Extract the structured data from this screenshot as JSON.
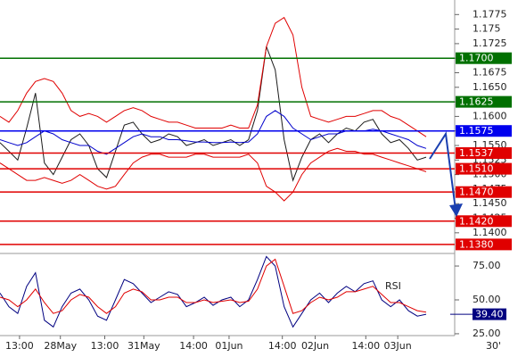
{
  "chart_data": [
    {
      "type": "line",
      "xlim": [
        0,
        97
      ],
      "ylim": [
        1.1366,
        1.18
      ],
      "yticks": [
        1.1775,
        1.175,
        1.1725,
        {
          "value": 1.17,
          "label": "1.1700"
        },
        1.1675,
        {
          "value": 1.165,
          "label": "1.1650"
        },
        1.1625,
        {
          "value": 1.16,
          "label": "1.1600"
        },
        1.1575,
        {
          "value": 1.155,
          "label": "1.1550"
        },
        1.1525,
        {
          "value": 1.15,
          "label": "1.1500"
        },
        1.1475,
        {
          "value": 1.145,
          "label": "1.1450"
        },
        1.1425,
        {
          "value": 1.14,
          "label": "1.1400"
        }
      ],
      "x": [
        0,
        2,
        4,
        6,
        8,
        10,
        12,
        14,
        16,
        18,
        20,
        22,
        24,
        26,
        28,
        30,
        32,
        34,
        36,
        38,
        40,
        42,
        44,
        46,
        48,
        50,
        52,
        54,
        56,
        58,
        60,
        62,
        64,
        66,
        68,
        70,
        72,
        74,
        76,
        78,
        80,
        82,
        84,
        86,
        88,
        90,
        92,
        94,
        96
      ],
      "series": [
        {
          "color": "#1a1a1a",
          "values": [
            1.1555,
            1.154,
            1.1525,
            1.158,
            1.164,
            1.152,
            1.15,
            1.153,
            1.156,
            1.157,
            1.155,
            1.151,
            1.1495,
            1.154,
            1.1585,
            1.159,
            1.157,
            1.1555,
            1.156,
            1.157,
            1.1565,
            1.155,
            1.1555,
            1.156,
            1.155,
            1.1555,
            1.156,
            1.155,
            1.156,
            1.161,
            1.172,
            1.168,
            1.156,
            1.149,
            1.153,
            1.156,
            1.157,
            1.1555,
            1.157,
            1.158,
            1.1575,
            1.159,
            1.1595,
            1.157,
            1.1555,
            1.156,
            1.1545,
            1.1525,
            1.153
          ]
        },
        {
          "color": "#e00000",
          "values": [
            1.16,
            1.159,
            1.161,
            1.164,
            1.166,
            1.1665,
            1.166,
            1.164,
            1.161,
            1.16,
            1.1605,
            1.16,
            1.159,
            1.16,
            1.161,
            1.1615,
            1.161,
            1.16,
            1.1595,
            1.159,
            1.159,
            1.1585,
            1.158,
            1.158,
            1.158,
            1.158,
            1.1585,
            1.158,
            1.158,
            1.162,
            1.172,
            1.176,
            1.177,
            1.174,
            1.165,
            1.16,
            1.1595,
            1.159,
            1.1595,
            1.16,
            1.16,
            1.1605,
            1.161,
            1.161,
            1.16,
            1.1595,
            1.1585,
            1.1575,
            1.1565
          ]
        },
        {
          "color": "#e00000",
          "values": [
            1.152,
            1.151,
            1.15,
            1.149,
            1.149,
            1.1495,
            1.149,
            1.1485,
            1.149,
            1.15,
            1.149,
            1.148,
            1.1475,
            1.148,
            1.15,
            1.152,
            1.153,
            1.1535,
            1.1535,
            1.153,
            1.153,
            1.153,
            1.1535,
            1.1535,
            1.153,
            1.153,
            1.153,
            1.153,
            1.1535,
            1.152,
            1.148,
            1.147,
            1.1455,
            1.147,
            1.15,
            1.152,
            1.153,
            1.154,
            1.1545,
            1.154,
            1.154,
            1.1535,
            1.1535,
            1.153,
            1.1525,
            1.152,
            1.1515,
            1.151,
            1.1505
          ]
        },
        {
          "color": "#0000cc",
          "values": [
            1.156,
            1.1555,
            1.155,
            1.1555,
            1.1565,
            1.1575,
            1.157,
            1.156,
            1.1555,
            1.155,
            1.155,
            1.154,
            1.1535,
            1.1545,
            1.1555,
            1.1565,
            1.157,
            1.1565,
            1.1565,
            1.156,
            1.156,
            1.1558,
            1.1556,
            1.1556,
            1.1555,
            1.1555,
            1.1556,
            1.1555,
            1.1556,
            1.157,
            1.16,
            1.161,
            1.16,
            1.158,
            1.157,
            1.156,
            1.1565,
            1.157,
            1.157,
            1.1575,
            1.1575,
            1.1575,
            1.1578,
            1.1575,
            1.157,
            1.1565,
            1.156,
            1.155,
            1.1545
          ]
        }
      ],
      "levels": [
        {
          "value": 1.17,
          "label": "1.1700",
          "color": "#007000"
        },
        {
          "value": 1.1625,
          "label": "1.1625",
          "color": "#007000"
        },
        {
          "value": 1.1575,
          "label": "1.1575",
          "color": "#0000ee"
        },
        {
          "value": 1.1537,
          "label": "1.1537",
          "color": "#e00000"
        },
        {
          "value": 1.151,
          "label": "1.1510",
          "color": "#e00000"
        },
        {
          "value": 1.147,
          "label": "1.1470",
          "color": "#e00000"
        },
        {
          "value": 1.142,
          "label": "1.1420",
          "color": "#e00000"
        },
        {
          "value": 1.138,
          "label": "1.1380",
          "color": "#e00000"
        }
      ]
    },
    {
      "type": "line",
      "title": "RSI",
      "xlim": [
        0,
        97
      ],
      "ylim": [
        24.3,
        83.6
      ],
      "yticks": [
        {
          "value": 75,
          "label": "75.00"
        },
        {
          "value": 50,
          "label": "50.00"
        },
        {
          "value": 25,
          "label": "25.00"
        }
      ],
      "xticks": [
        {
          "value": 4.4,
          "label": "13:00"
        },
        {
          "value": 13.6,
          "label": "28May"
        },
        {
          "value": 23.6,
          "label": "13:00"
        },
        {
          "value": 32.4,
          "label": "31May"
        },
        {
          "value": 43.6,
          "label": "14:00"
        },
        {
          "value": 51.6,
          "label": "01Jun"
        },
        {
          "value": 63.6,
          "label": "14:00"
        },
        {
          "value": 71,
          "label": "02Jun"
        },
        {
          "value": 82.4,
          "label": "14:00"
        },
        {
          "value": 89.6,
          "label": "03Jun"
        }
      ],
      "timeframe": "30'",
      "x": [
        0,
        2,
        4,
        6,
        8,
        10,
        12,
        14,
        16,
        18,
        20,
        22,
        24,
        26,
        28,
        30,
        32,
        34,
        36,
        38,
        40,
        42,
        44,
        46,
        48,
        50,
        52,
        54,
        56,
        58,
        60,
        62,
        64,
        66,
        68,
        70,
        72,
        74,
        76,
        78,
        80,
        82,
        84,
        86,
        88,
        90,
        92,
        94,
        96
      ],
      "series": [
        {
          "color": "#000080",
          "values": [
            55,
            45,
            40,
            60,
            70,
            35,
            30,
            45,
            55,
            58,
            50,
            38,
            35,
            50,
            65,
            62,
            55,
            48,
            52,
            56,
            54,
            45,
            48,
            52,
            46,
            50,
            52,
            45,
            50,
            65,
            82,
            75,
            45,
            30,
            40,
            50,
            55,
            48,
            55,
            60,
            56,
            62,
            64,
            50,
            45,
            50,
            42,
            38,
            39.4
          ]
        },
        {
          "color": "#e00000",
          "values": [
            52,
            50,
            45,
            50,
            58,
            48,
            40,
            42,
            50,
            54,
            52,
            45,
            40,
            45,
            55,
            58,
            56,
            50,
            50,
            52,
            52,
            48,
            48,
            50,
            48,
            49,
            50,
            48,
            49,
            58,
            75,
            80,
            60,
            40,
            42,
            48,
            52,
            50,
            52,
            56,
            56,
            58,
            60,
            54,
            48,
            48,
            45,
            42,
            41
          ]
        }
      ],
      "value_label": "39.40",
      "value_label_color": "#000080"
    }
  ]
}
